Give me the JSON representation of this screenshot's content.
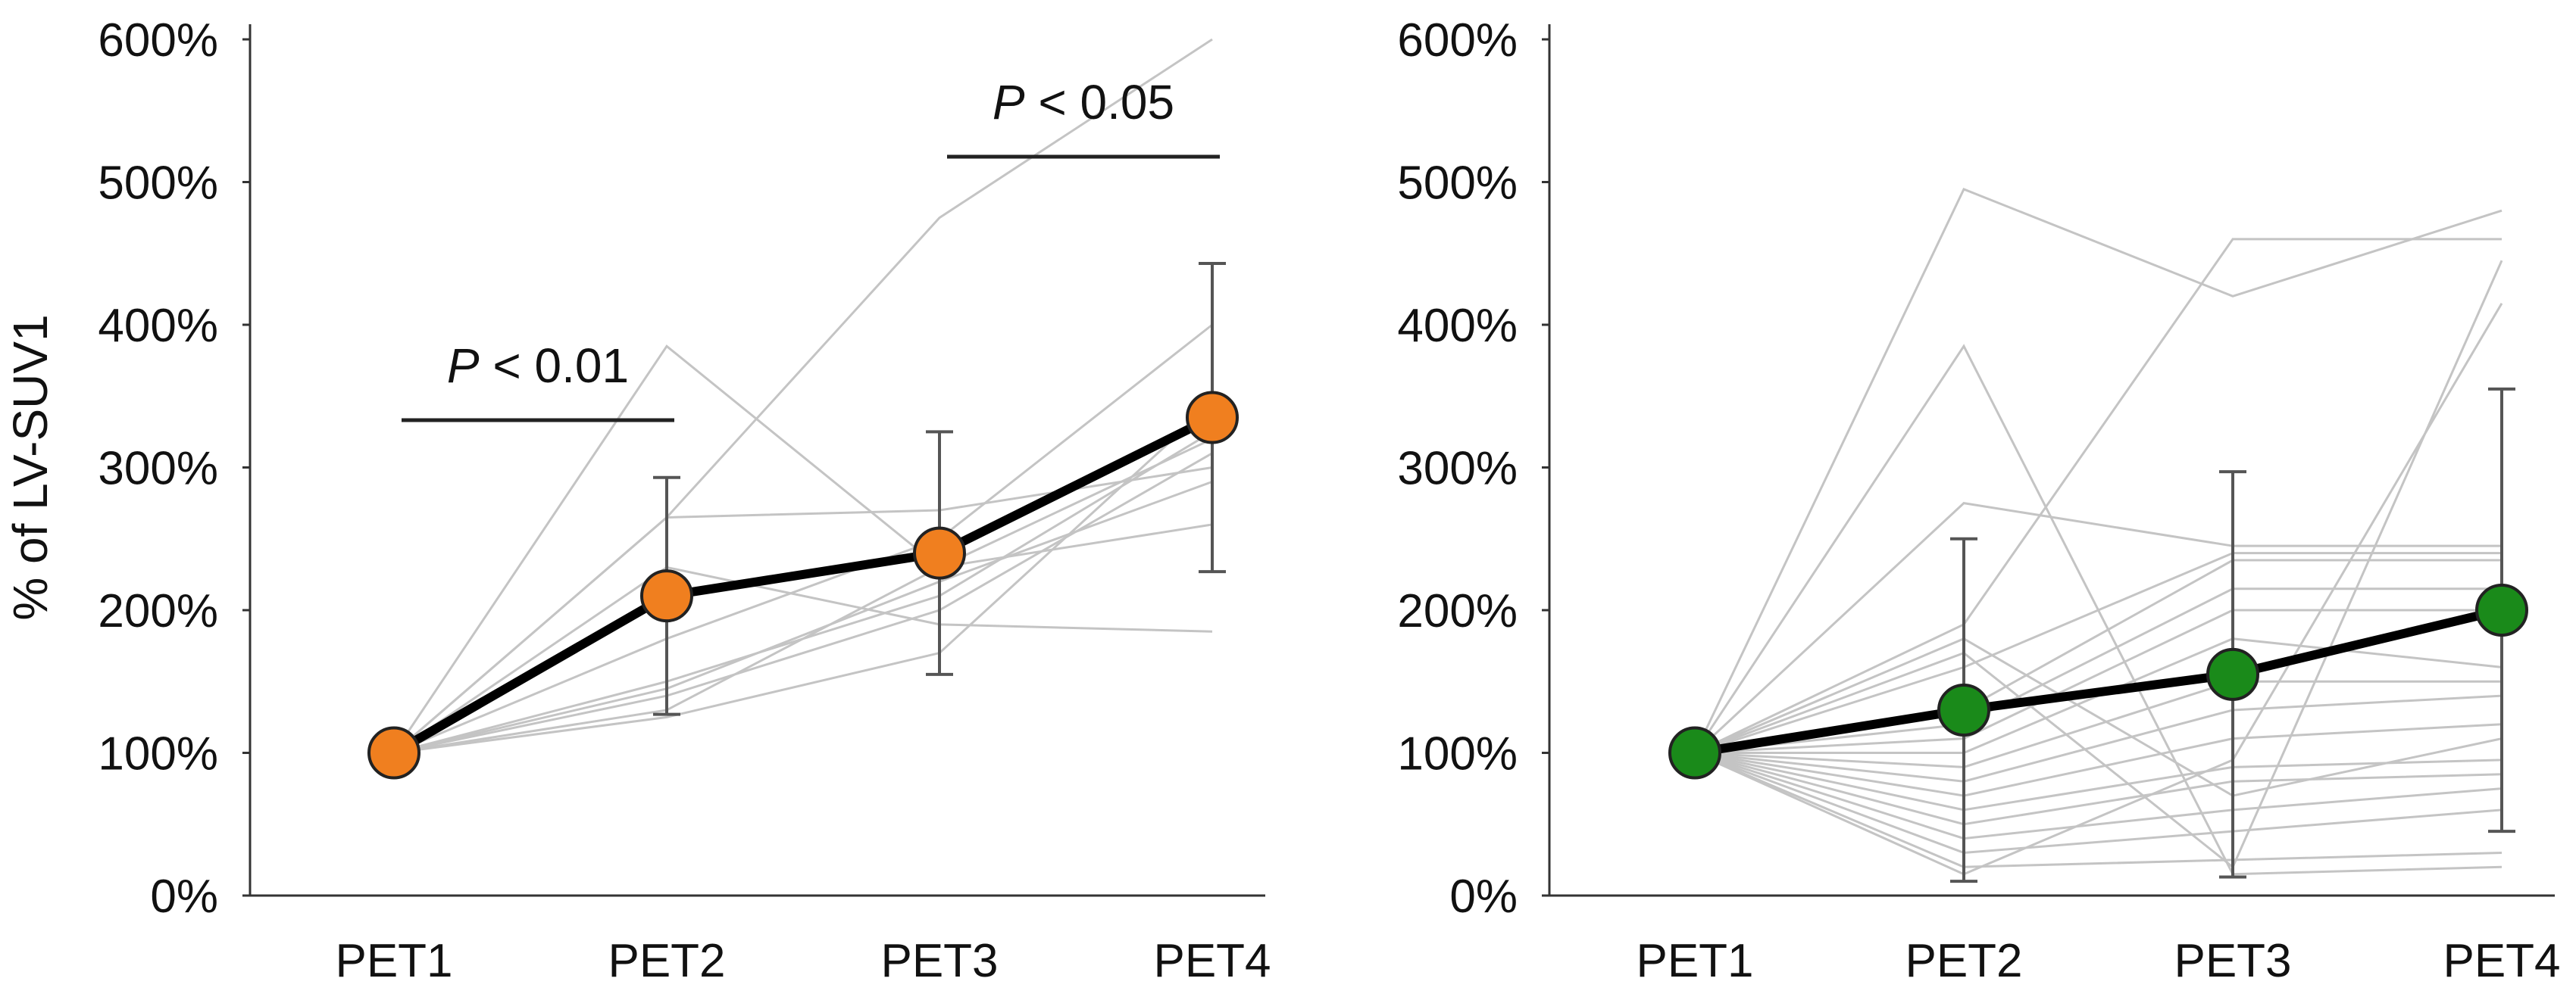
{
  "chart_data": [
    {
      "type": "line",
      "ylabel": "% of  LV-SUV1",
      "categories": [
        "PET1",
        "PET2",
        "PET3",
        "PET4"
      ],
      "ylim": [
        0,
        600
      ],
      "yticks": [
        "0%",
        "100%",
        "200%",
        "300%",
        "400%",
        "500%",
        "600%"
      ],
      "mean": {
        "values": [
          100,
          210,
          240,
          335
        ],
        "error": [
          0,
          83,
          85,
          108
        ],
        "marker_color": "#f07f1f"
      },
      "individual_series": [
        [
          100,
          385,
          230,
          260
        ],
        [
          100,
          265,
          475,
          600
        ],
        [
          100,
          265,
          270,
          300
        ],
        [
          100,
          230,
          190,
          185
        ],
        [
          100,
          180,
          250,
          400
        ],
        [
          100,
          150,
          210,
          325
        ],
        [
          100,
          140,
          200,
          310
        ],
        [
          100,
          125,
          170,
          345
        ],
        [
          100,
          145,
          220,
          290
        ],
        [
          100,
          130,
          230,
          320
        ]
      ],
      "annotations": [
        {
          "p_symbol": "P",
          "p_text": " < 0.01",
          "from": "PET1",
          "to": "PET2"
        },
        {
          "p_symbol": "P",
          "p_text": " < 0.05",
          "from": "PET3",
          "to": "PET4"
        }
      ]
    },
    {
      "type": "line",
      "categories": [
        "PET1",
        "PET2",
        "PET3",
        "PET4"
      ],
      "ylim": [
        0,
        600
      ],
      "yticks": [
        "0%",
        "100%",
        "200%",
        "300%",
        "400%",
        "500%",
        "600%"
      ],
      "mean": {
        "values": [
          100,
          130,
          155,
          200
        ],
        "error": [
          0,
          120,
          142,
          155
        ],
        "marker_color": "#1a8a1a"
      },
      "individual_series": [
        [
          100,
          495,
          420,
          480
        ],
        [
          100,
          385,
          15,
          20
        ],
        [
          100,
          275,
          245,
          245
        ],
        [
          100,
          190,
          460,
          460
        ],
        [
          100,
          170,
          20,
          445
        ],
        [
          100,
          160,
          240,
          240
        ],
        [
          100,
          130,
          235,
          235
        ],
        [
          100,
          120,
          215,
          215
        ],
        [
          100,
          110,
          200,
          200
        ],
        [
          100,
          100,
          180,
          160
        ],
        [
          100,
          90,
          150,
          150
        ],
        [
          100,
          80,
          130,
          140
        ],
        [
          100,
          70,
          110,
          120
        ],
        [
          100,
          60,
          90,
          95
        ],
        [
          100,
          50,
          80,
          85
        ],
        [
          100,
          40,
          60,
          75
        ],
        [
          100,
          30,
          45,
          60
        ],
        [
          100,
          20,
          25,
          30
        ],
        [
          100,
          15,
          95,
          415
        ],
        [
          100,
          180,
          70,
          110
        ]
      ]
    }
  ]
}
